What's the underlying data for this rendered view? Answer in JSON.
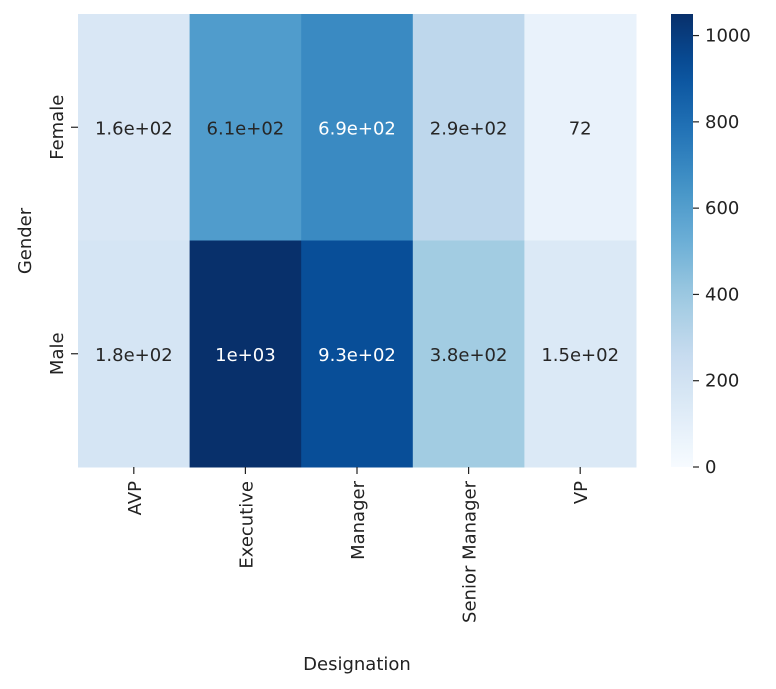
{
  "chart_data": {
    "type": "heatmap",
    "title": "",
    "xlabel": "Designation",
    "ylabel": "Gender",
    "x_categories": [
      "AVP",
      "Executive",
      "Manager",
      "Senior Manager",
      "VP"
    ],
    "y_categories": [
      "Female",
      "Male"
    ],
    "values": [
      [
        160,
        610,
        690,
        290,
        72
      ],
      [
        180,
        1050,
        930,
        380,
        150
      ]
    ],
    "annotations": [
      [
        "1.6e+02",
        "6.1e+02",
        "6.9e+02",
        "2.9e+02",
        "72"
      ],
      [
        "1.8e+02",
        "1e+03",
        "9.3e+02",
        "3.8e+02",
        "1.5e+02"
      ]
    ],
    "colormap": "Blues",
    "colorbar": {
      "range": [
        0,
        1050
      ],
      "ticks": [
        0,
        200,
        400,
        600,
        800,
        1000
      ],
      "tick_labels": [
        "0",
        "200",
        "400",
        "600",
        "800",
        "1000"
      ]
    }
  }
}
